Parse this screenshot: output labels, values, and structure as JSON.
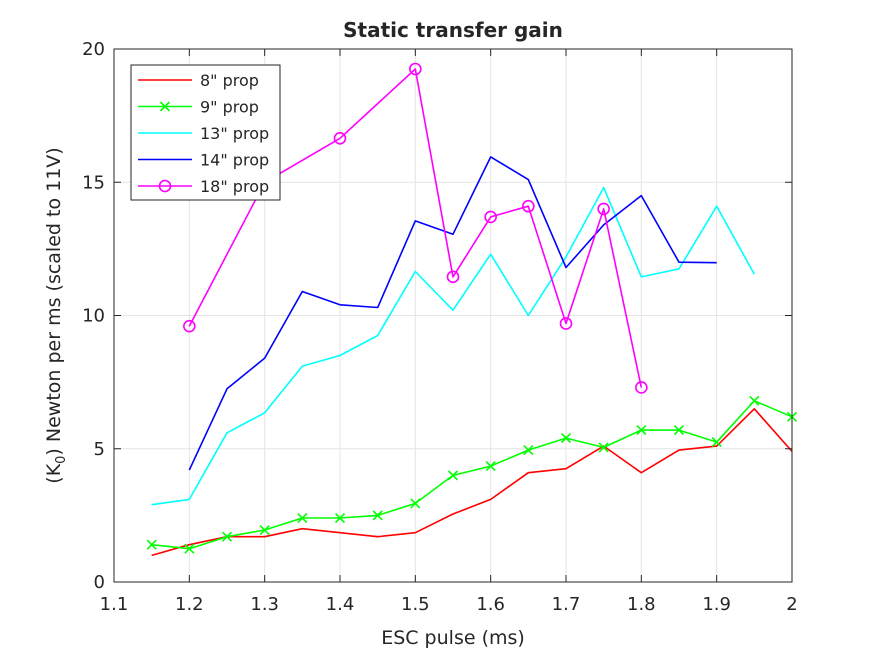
{
  "chart_data": {
    "type": "line",
    "title": "Static transfer gain",
    "xlabel": "ESC pulse (ms)",
    "ylabel_pre": "(K",
    "ylabel_sub": "0",
    "ylabel_post": ") Newton per ms (scaled to 11V)",
    "xlim": [
      1.1,
      2.0
    ],
    "ylim": [
      0,
      20
    ],
    "xticks": [
      1.1,
      1.2,
      1.3,
      1.4,
      1.5,
      1.6,
      1.7,
      1.8,
      1.9,
      2.0
    ],
    "xtick_labels": [
      "1.1",
      "1.2",
      "1.3",
      "1.4",
      "1.5",
      "1.6",
      "1.7",
      "1.8",
      "1.9",
      "2"
    ],
    "yticks": [
      0,
      5,
      10,
      15,
      20
    ],
    "ytick_labels": [
      "0",
      "5",
      "10",
      "15",
      "20"
    ],
    "grid": true,
    "legend_position": "top-left",
    "series": [
      {
        "name": "8\" prop",
        "color": "#ff0000",
        "marker": "none",
        "x": [
          1.15,
          1.2,
          1.25,
          1.3,
          1.35,
          1.4,
          1.45,
          1.5,
          1.55,
          1.6,
          1.65,
          1.7,
          1.75,
          1.8,
          1.85,
          1.9,
          1.95,
          2.0
        ],
        "y": [
          1.0,
          1.4,
          1.7,
          1.7,
          2.0,
          1.85,
          1.7,
          1.85,
          2.55,
          3.1,
          4.1,
          4.25,
          5.1,
          4.1,
          4.95,
          5.1,
          6.5,
          4.9
        ]
      },
      {
        "name": "9\" prop",
        "color": "#00ff00",
        "marker": "x",
        "x": [
          1.15,
          1.2,
          1.25,
          1.3,
          1.35,
          1.4,
          1.45,
          1.5,
          1.55,
          1.6,
          1.65,
          1.7,
          1.75,
          1.8,
          1.85,
          1.9,
          1.95,
          2.0
        ],
        "y": [
          1.4,
          1.25,
          1.7,
          1.95,
          2.4,
          2.4,
          2.5,
          2.95,
          4.0,
          4.35,
          4.95,
          5.4,
          5.05,
          5.7,
          5.7,
          5.25,
          6.8,
          6.2
        ]
      },
      {
        "name": "13\" prop",
        "color": "#00ffff",
        "marker": "none",
        "x": [
          1.15,
          1.2,
          1.25,
          1.3,
          1.35,
          1.4,
          1.45,
          1.5,
          1.55,
          1.6,
          1.65,
          1.7,
          1.75,
          1.8,
          1.85,
          1.9,
          1.95
        ],
        "y": [
          2.9,
          3.1,
          5.6,
          6.35,
          8.1,
          8.5,
          9.25,
          11.65,
          10.2,
          12.3,
          10.0,
          12.2,
          14.8,
          11.45,
          11.75,
          14.1,
          11.55
        ]
      },
      {
        "name": "14\" prop",
        "color": "#0000ff",
        "marker": "none",
        "x": [
          1.2,
          1.25,
          1.3,
          1.35,
          1.4,
          1.45,
          1.5,
          1.55,
          1.6,
          1.65,
          1.7,
          1.75,
          1.8,
          1.85,
          1.9
        ],
        "y": [
          4.2,
          7.25,
          8.4,
          10.9,
          10.4,
          10.3,
          13.55,
          13.05,
          15.95,
          15.1,
          11.8,
          13.4,
          14.5,
          12.0,
          11.98
        ]
      },
      {
        "name": "18\" prop",
        "color": "#ff00ff",
        "marker": "o",
        "x": [
          1.2,
          1.3,
          1.4,
          1.5,
          1.55,
          1.6,
          1.65,
          1.7,
          1.75,
          1.8
        ],
        "y": [
          9.6,
          15.0,
          16.65,
          19.25,
          11.45,
          13.7,
          14.1,
          9.7,
          14.0,
          7.3
        ]
      }
    ]
  }
}
